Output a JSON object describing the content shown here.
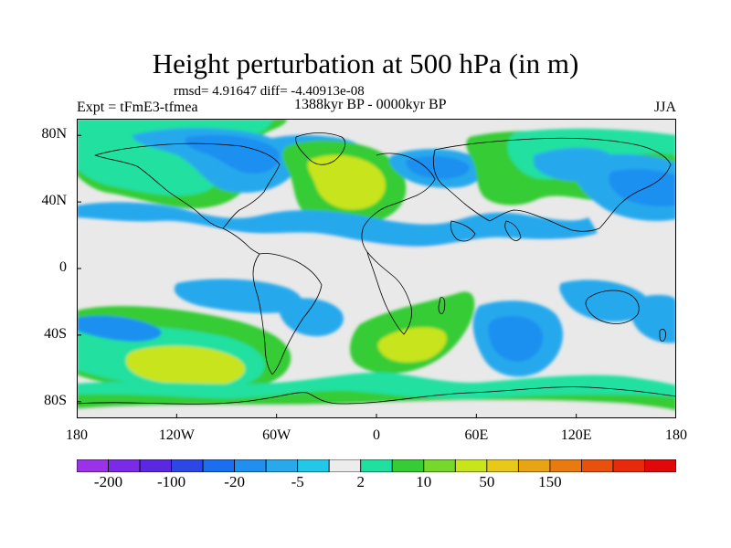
{
  "title": "Height perturbation at 500 hPa (in m)",
  "stats_text": "rmsd= 4.91647  diff= -4.40913e-08",
  "experiment_label": "Expt = tFmE3-tfmea",
  "period_label": "1388kyr BP - 0000kyr BP",
  "season_label": "JJA",
  "map": {
    "projection": "cylindrical equidistant",
    "lon_range": [
      -180,
      180
    ],
    "lat_range": [
      -90,
      90
    ],
    "lat_ticks": [
      {
        "lat": 80,
        "label": "80N"
      },
      {
        "lat": 40,
        "label": "40N"
      },
      {
        "lat": 0,
        "label": "0"
      },
      {
        "lat": -40,
        "label": "40S"
      },
      {
        "lat": -80,
        "label": "80S"
      }
    ],
    "lon_ticks": [
      {
        "lon": -180,
        "label": "180"
      },
      {
        "lon": -120,
        "label": "120W"
      },
      {
        "lon": -60,
        "label": "60W"
      },
      {
        "lon": 0,
        "label": "0"
      },
      {
        "lon": 60,
        "label": "60E"
      },
      {
        "lon": 120,
        "label": "120E"
      },
      {
        "lon": 180,
        "label": "180"
      }
    ],
    "background_color": "#e9e9e9",
    "field_features": [
      {
        "name": "positive-band-north-pacific",
        "lon": -150,
        "lat": 62,
        "level": 10
      },
      {
        "name": "positive-high-north-atlantic",
        "lon": -30,
        "lat": 55,
        "level": 50
      },
      {
        "name": "positive-band-eurasia",
        "lon": 70,
        "lat": 55,
        "level": 10
      },
      {
        "name": "negative-low-north-america",
        "lon": -95,
        "lat": 75,
        "level": -5
      },
      {
        "name": "negative-band-subtropics",
        "lon": 0,
        "lat": 32,
        "level": -5
      },
      {
        "name": "negative-low-east-asia",
        "lon": 150,
        "lat": 45,
        "level": -20
      },
      {
        "name": "positive-high-south-pacific",
        "lon": -120,
        "lat": -55,
        "level": 50
      },
      {
        "name": "positive-high-south-atlantic",
        "lon": 30,
        "lat": -45,
        "level": 50
      },
      {
        "name": "negative-low-indian-ocean",
        "lon": 85,
        "lat": -40,
        "level": -20
      },
      {
        "name": "negative-band-south-america",
        "lon": -65,
        "lat": -20,
        "level": -5
      },
      {
        "name": "positive-band-antarctic",
        "lon": -20,
        "lat": -75,
        "level": 10
      }
    ]
  },
  "colorbar": {
    "colors": [
      "#9b32e8",
      "#7a2ae8",
      "#5a28e0",
      "#2d46e6",
      "#1a6ef0",
      "#1f90f0",
      "#28a9ec",
      "#22c8e8",
      "#ececec",
      "#20e0a0",
      "#36cc35",
      "#76d82a",
      "#c8e41a",
      "#e8c818",
      "#e8a414",
      "#e87a10",
      "#e8500c",
      "#e82a0a",
      "#e00808"
    ],
    "labels": [
      {
        "text": "-200",
        "boundary": 1
      },
      {
        "text": "-100",
        "boundary": 3
      },
      {
        "text": "-20",
        "boundary": 5
      },
      {
        "text": "-5",
        "boundary": 7
      },
      {
        "text": "2",
        "boundary": 9
      },
      {
        "text": "10",
        "boundary": 11
      },
      {
        "text": "50",
        "boundary": 13
      },
      {
        "text": "150",
        "boundary": 15
      }
    ]
  }
}
